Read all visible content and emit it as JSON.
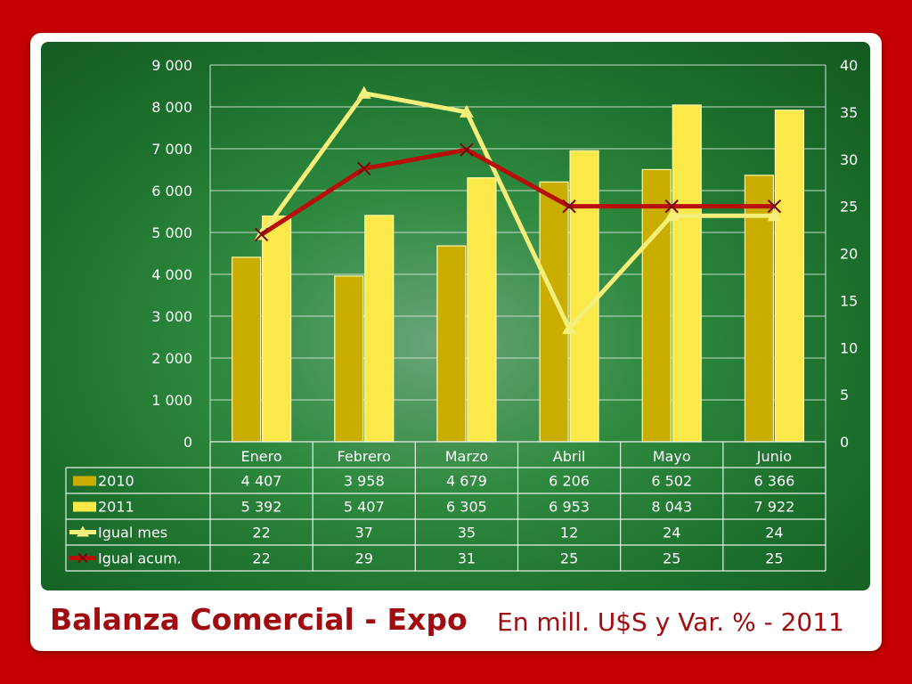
{
  "title": "Balanza Comercial - Expo",
  "subtitle": "En mill. U$S y Var. % - 2011",
  "colors": {
    "background": "#c40000",
    "panel": "#1b6e2b",
    "bar_2010": "#c9ae00",
    "bar_2011": "#fbe94a",
    "line_mes": "#f4ee7a",
    "line_acum": "#b80e0e",
    "title": "#a00d10"
  },
  "chart_data": {
    "type": "bar",
    "categories": [
      "Enero",
      "Febrero",
      "Marzo",
      "Abril",
      "Mayo",
      "Junio"
    ],
    "y_left_ticks": [
      "0",
      "1 000",
      "2 000",
      "3 000",
      "4 000",
      "5 000",
      "6 000",
      "7 000",
      "8 000",
      "9 000"
    ],
    "y_left_lim": [
      0,
      9000
    ],
    "y_right_ticks": [
      "0",
      "5",
      "10",
      "15",
      "20",
      "25",
      "30",
      "35",
      "40"
    ],
    "y_right_lim": [
      0,
      40
    ],
    "grid": true,
    "legend": "data table below chart",
    "series": [
      {
        "name": "2010",
        "type": "bar",
        "axis": "left",
        "values": [
          4407,
          3958,
          4679,
          6206,
          6502,
          6366
        ],
        "labels": [
          "4 407",
          "3 958",
          "4 679",
          "6 206",
          "6 502",
          "6 366"
        ]
      },
      {
        "name": "2011",
        "type": "bar",
        "axis": "left",
        "values": [
          5392,
          5407,
          6305,
          6953,
          8043,
          7922
        ],
        "labels": [
          "5 392",
          "5 407",
          "6 305",
          "6 953",
          "8 043",
          "7 922"
        ]
      },
      {
        "name": "Igual mes",
        "type": "line",
        "marker": "triangle",
        "axis": "right",
        "values": [
          22,
          37,
          35,
          12,
          24,
          24
        ],
        "labels": [
          "22",
          "37",
          "35",
          "12",
          "24",
          "24"
        ]
      },
      {
        "name": "Igual acum.",
        "type": "line",
        "marker": "x",
        "axis": "right",
        "values": [
          22,
          29,
          31,
          25,
          25,
          25
        ],
        "labels": [
          "22",
          "29",
          "31",
          "25",
          "25",
          "25"
        ]
      }
    ]
  }
}
